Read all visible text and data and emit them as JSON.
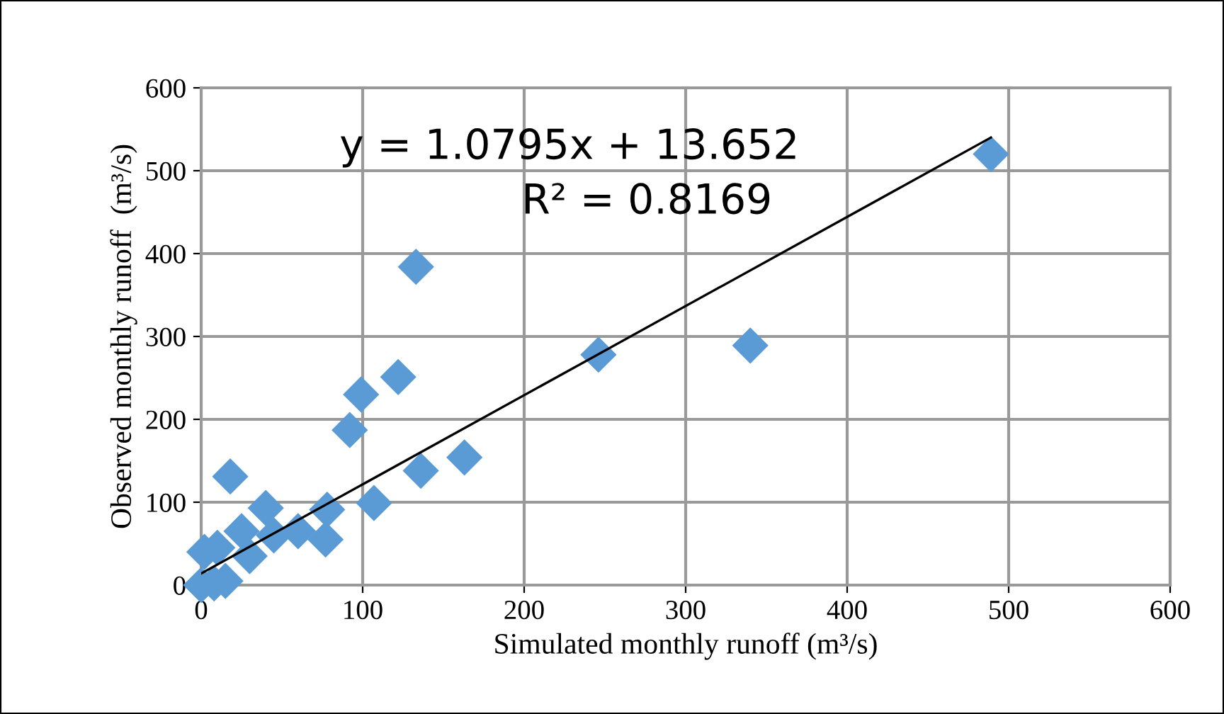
{
  "chart_data": {
    "type": "scatter",
    "xlabel": "Simulated monthly runoff (m³/s)",
    "ylabel": "Observed monthly runoff  (m³/s)",
    "xlim": [
      0,
      600
    ],
    "ylim": [
      0,
      600
    ],
    "xticks": [
      0,
      100,
      200,
      300,
      400,
      500,
      600
    ],
    "yticks": [
      0,
      100,
      200,
      300,
      400,
      500,
      600
    ],
    "grid": true,
    "marker": "diamond",
    "annotations": [
      "y = 1.0795x + 13.652",
      "R² = 0.8169"
    ],
    "series": [
      {
        "color": "#5b9bd5",
        "x": [
          489,
          133,
          340,
          246,
          122,
          99,
          92,
          18,
          163,
          136,
          107,
          40,
          78,
          77,
          60,
          25,
          10,
          0,
          30,
          8,
          15,
          45,
          2
        ],
        "values": [
          520,
          384,
          289,
          278,
          251,
          230,
          187,
          131,
          154,
          138,
          99,
          93,
          91,
          55,
          65,
          65,
          45,
          0,
          35,
          2,
          5,
          60,
          40
        ]
      },
      {
        "type": "line",
        "color": "#000000",
        "marker": "none",
        "x": [
          0,
          489
        ],
        "values": [
          14,
          540
        ]
      }
    ]
  }
}
